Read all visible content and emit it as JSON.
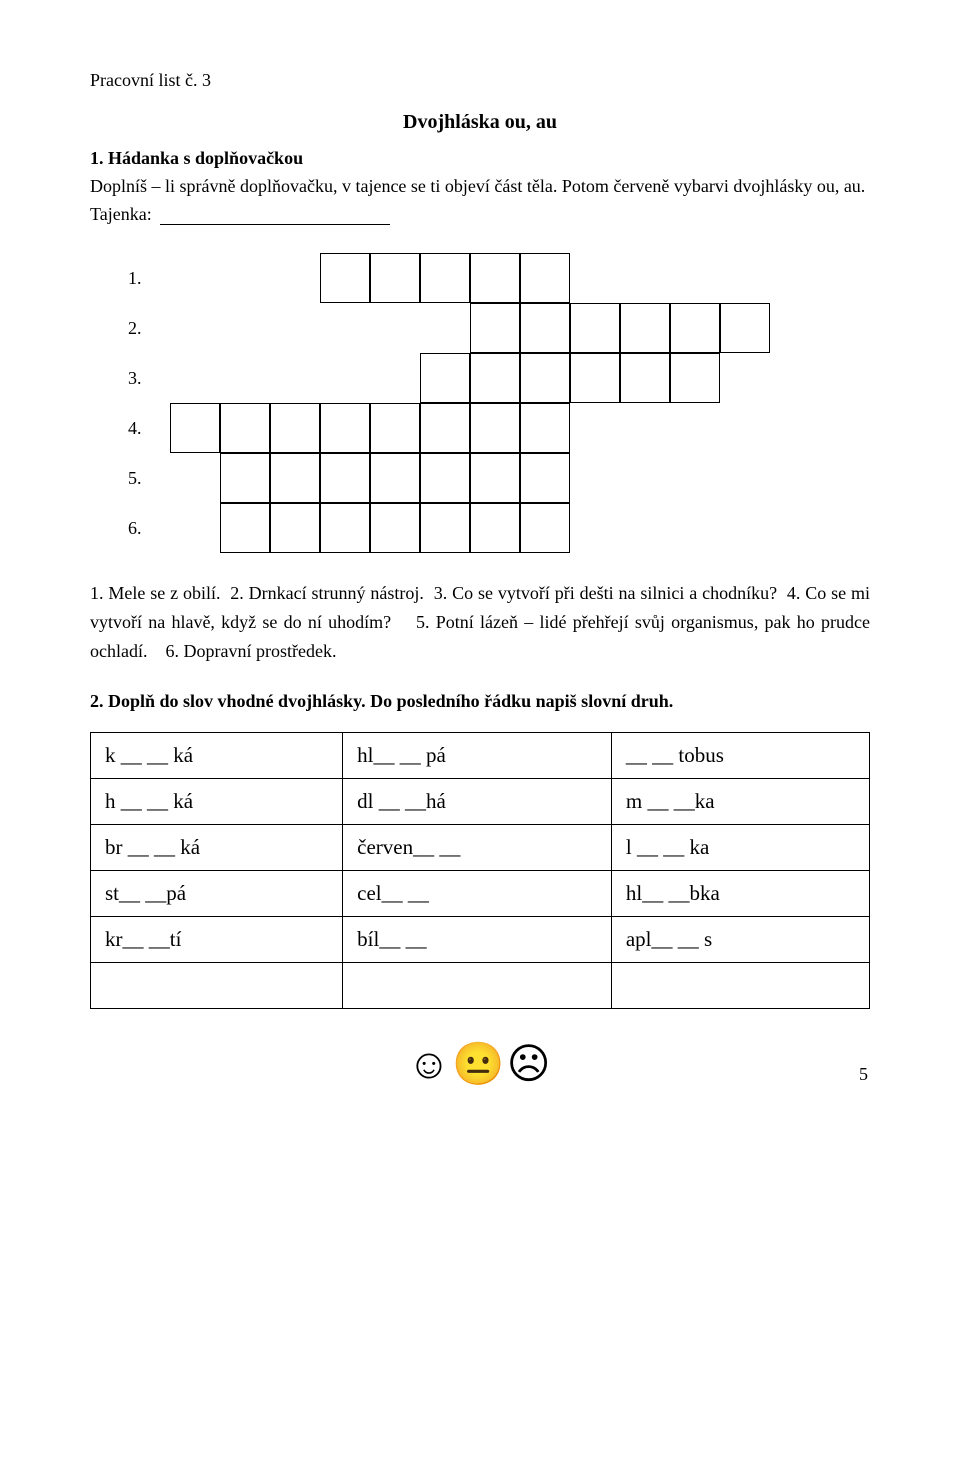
{
  "header": "Pracovní list č. 3",
  "title": "Dvojhláska ou, au",
  "task1_heading": "1. Hádanka s doplňovačkou",
  "task1_text": "Doplníš – li správně doplňovačku, v tajence se ti objeví část těla. Potom červeně vybarvi dvojhlásky ou, au.",
  "tajenka_label": "Tajenka:",
  "crossword": {
    "rows": [
      {
        "num": "1.",
        "offset": 3,
        "len": 5
      },
      {
        "num": "2.",
        "offset": 6,
        "len": 6
      },
      {
        "num": "3.",
        "offset": 5,
        "len": 6
      },
      {
        "num": "4.",
        "offset": 0,
        "len": 8
      },
      {
        "num": "5.",
        "offset": 1,
        "len": 7
      },
      {
        "num": "6.",
        "offset": 1,
        "len": 7
      }
    ],
    "cell_size": 50
  },
  "clues": {
    "c1": "1. Mele se z obilí.",
    "c2": "2. Drnkací strunný nástroj.",
    "c3": "3. Co se vytvoří při dešti na silnici a chodníku?",
    "c4": "4. Co se mi vytvoří na hlavě, když se do ní uhodím?",
    "c5": "5. Potní lázeň – lidé přehřejí svůj organismus, pak ho prudce ochladí.",
    "c6": "6. Dopravní prostředek."
  },
  "task2_heading": "2. Doplň do slov vhodné dvojhlásky. Do posledního řádku napiš slovní druh.",
  "table_fill": {
    "rows": [
      [
        "k __ __ ká",
        "hl__ __ pá",
        "__ __ tobus"
      ],
      [
        "h __ __ ká",
        "dl __ __há",
        "m __ __ka"
      ],
      [
        "br __ __ ká",
        "červen__ __",
        "l __ __ ka"
      ],
      [
        "st__ __pá",
        "cel__ __",
        "hl__ __bka"
      ],
      [
        "kr__ __tí",
        "bíl__ __",
        "apl__ __ s"
      ],
      [
        "",
        "",
        ""
      ]
    ],
    "column_count": 3
  },
  "emojis": "☺☺☹",
  "emoji_glyphs": [
    "☺",
    "😐",
    "☹"
  ],
  "page_number": "5"
}
